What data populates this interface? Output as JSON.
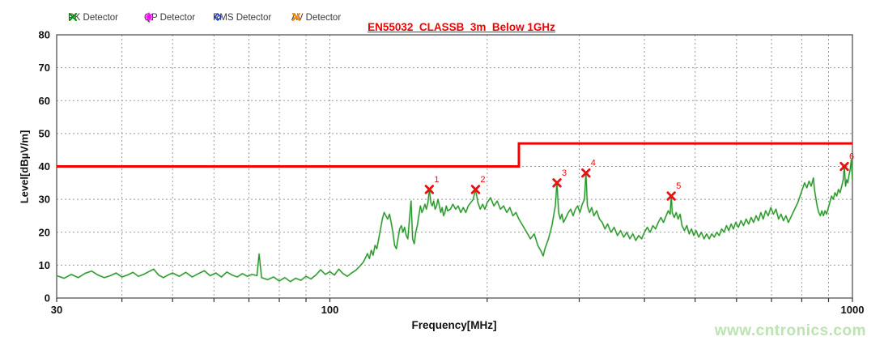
{
  "title": {
    "text": "EN55032_CLASSB_3m_Below 1GHz",
    "color": "#f40000"
  },
  "watermark": {
    "text": "www.cntronics.com",
    "color": "#bce3b2"
  },
  "legend": {
    "items": [
      {
        "label": "PK Detector",
        "marker": "x",
        "color": "#089408"
      },
      {
        "label": "QP Detector",
        "marker": "star",
        "color": "#ff00ff"
      },
      {
        "label": "RMS Detector",
        "marker": "diamond",
        "color": "#1133cc"
      },
      {
        "label": "AV Detector",
        "marker": "x",
        "color": "#ff8c00"
      }
    ]
  },
  "chart_data": {
    "type": "line",
    "title": "EN55032_CLASSB_3m_Below 1GHz",
    "xlabel": "Frequency[MHz]",
    "ylabel": "Level[dBµV/m]",
    "x_scale": "log",
    "xlim": [
      30,
      1000
    ],
    "ylim": [
      0,
      80
    ],
    "x_tick_labels": [
      30,
      100,
      1000
    ],
    "x_gridlines": [
      40,
      50,
      60,
      70,
      80,
      90,
      100,
      200,
      300,
      400,
      500,
      600,
      700,
      800,
      900
    ],
    "y_ticks": [
      0,
      10,
      20,
      30,
      40,
      50,
      60,
      70,
      80
    ],
    "grid": "dashed",
    "colors": {
      "trace": "#259325",
      "trace_glow": "#8fcd8f",
      "limit": "#f40000",
      "marker": "#e81010",
      "gridline": "#999999",
      "frame": "#555555",
      "tick_text": "#111111"
    },
    "series": [
      {
        "name": "PK Detector",
        "color": "#259325",
        "points": [
          [
            30,
            6.8
          ],
          [
            31,
            6.0
          ],
          [
            32,
            7.2
          ],
          [
            33,
            6.2
          ],
          [
            34,
            7.5
          ],
          [
            35,
            8.2
          ],
          [
            36,
            7.0
          ],
          [
            37,
            6.2
          ],
          [
            38,
            6.8
          ],
          [
            39,
            7.6
          ],
          [
            40,
            6.4
          ],
          [
            41,
            7.0
          ],
          [
            42,
            7.8
          ],
          [
            43,
            6.6
          ],
          [
            44,
            7.2
          ],
          [
            45,
            8.0
          ],
          [
            46,
            8.8
          ],
          [
            47,
            7.0
          ],
          [
            48,
            6.2
          ],
          [
            49,
            7.0
          ],
          [
            50,
            7.6
          ],
          [
            51.5,
            6.6
          ],
          [
            53,
            7.8
          ],
          [
            54.5,
            6.4
          ],
          [
            56,
            7.4
          ],
          [
            57.5,
            8.3
          ],
          [
            59,
            6.8
          ],
          [
            60.5,
            7.6
          ],
          [
            62,
            6.4
          ],
          [
            63.5,
            7.9
          ],
          [
            65,
            7.0
          ],
          [
            66.5,
            6.4
          ],
          [
            68,
            7.4
          ],
          [
            69.5,
            6.6
          ],
          [
            71,
            7.2
          ],
          [
            72.5,
            6.8
          ],
          [
            73.2,
            13.4
          ],
          [
            74,
            6.2
          ],
          [
            76,
            5.6
          ],
          [
            78,
            6.4
          ],
          [
            80,
            5.2
          ],
          [
            82,
            6.2
          ],
          [
            84,
            5.0
          ],
          [
            86,
            6.0
          ],
          [
            88,
            5.4
          ],
          [
            90,
            6.6
          ],
          [
            92,
            5.8
          ],
          [
            94,
            7.0
          ],
          [
            96,
            8.6
          ],
          [
            98,
            7.2
          ],
          [
            100,
            8.0
          ],
          [
            102,
            7.0
          ],
          [
            104,
            8.8
          ],
          [
            106,
            7.4
          ],
          [
            108,
            6.6
          ],
          [
            110,
            7.6
          ],
          [
            112,
            8.4
          ],
          [
            114,
            9.6
          ],
          [
            116,
            11.0
          ],
          [
            118,
            13.5
          ],
          [
            119,
            12.0
          ],
          [
            120,
            14.5
          ],
          [
            121,
            13.0
          ],
          [
            122,
            16.0
          ],
          [
            123,
            15.0
          ],
          [
            124,
            18.0
          ],
          [
            125,
            21.0
          ],
          [
            126,
            24.0
          ],
          [
            127,
            26.0
          ],
          [
            128,
            25.0
          ],
          [
            129,
            24.0
          ],
          [
            130,
            25.5
          ],
          [
            131,
            23.0
          ],
          [
            132,
            20.0
          ],
          [
            133,
            16.0
          ],
          [
            134,
            15.0
          ],
          [
            135,
            18.0
          ],
          [
            136,
            21.0
          ],
          [
            137,
            22.0
          ],
          [
            138,
            20.0
          ],
          [
            139,
            21.5
          ],
          [
            140,
            19.0
          ],
          [
            141,
            18.0
          ],
          [
            142,
            24.0
          ],
          [
            143,
            29.5
          ],
          [
            144,
            18.0
          ],
          [
            145,
            16.5
          ],
          [
            146,
            20.0
          ],
          [
            147,
            22.0
          ],
          [
            148,
            25.0
          ],
          [
            149,
            28.0
          ],
          [
            150,
            26.0
          ],
          [
            151,
            27.0
          ],
          [
            152,
            28.5
          ],
          [
            153,
            27.0
          ],
          [
            154,
            29.0
          ],
          [
            155,
            33.0
          ],
          [
            156,
            29.0
          ],
          [
            157,
            28.0
          ],
          [
            158,
            29.5
          ],
          [
            159,
            27.0
          ],
          [
            160,
            28.0
          ],
          [
            161,
            30.0
          ],
          [
            162,
            28.0
          ],
          [
            163,
            26.0
          ],
          [
            164,
            27.5
          ],
          [
            165,
            25.0
          ],
          [
            166,
            26.0
          ],
          [
            167,
            28.0
          ],
          [
            168,
            26.5
          ],
          [
            170,
            27.0
          ],
          [
            172,
            28.5
          ],
          [
            174,
            27.0
          ],
          [
            176,
            28.0
          ],
          [
            178,
            26.0
          ],
          [
            180,
            27.5
          ],
          [
            182,
            26.0
          ],
          [
            184,
            28.0
          ],
          [
            186,
            29.0
          ],
          [
            188,
            30.0
          ],
          [
            190,
            33.0
          ],
          [
            192,
            29.0
          ],
          [
            194,
            27.0
          ],
          [
            196,
            28.5
          ],
          [
            198,
            27.0
          ],
          [
            200,
            29.0
          ],
          [
            203,
            30.5
          ],
          [
            206,
            28.0
          ],
          [
            209,
            29.5
          ],
          [
            212,
            27.0
          ],
          [
            215,
            28.0
          ],
          [
            218,
            26.0
          ],
          [
            221,
            27.5
          ],
          [
            224,
            25.0
          ],
          [
            227,
            26.0
          ],
          [
            230,
            24.0
          ],
          [
            234,
            22.0
          ],
          [
            238,
            20.0
          ],
          [
            242,
            18.0
          ],
          [
            246,
            19.5
          ],
          [
            250,
            16.0
          ],
          [
            254,
            14.0
          ],
          [
            256,
            12.8
          ],
          [
            258,
            15.0
          ],
          [
            262,
            18.0
          ],
          [
            264,
            20.0
          ],
          [
            266,
            22.0
          ],
          [
            268,
            25.0
          ],
          [
            270,
            28.0
          ],
          [
            272,
            35.0
          ],
          [
            274,
            26.0
          ],
          [
            276,
            24.0
          ],
          [
            278,
            25.5
          ],
          [
            280,
            23.0
          ],
          [
            283,
            24.5
          ],
          [
            286,
            26.0
          ],
          [
            289,
            27.0
          ],
          [
            292,
            25.0
          ],
          [
            295,
            27.0
          ],
          [
            298,
            28.0
          ],
          [
            301,
            26.0
          ],
          [
            304,
            28.5
          ],
          [
            307,
            30.0
          ],
          [
            309,
            38.0
          ],
          [
            311,
            28.0
          ],
          [
            314,
            26.0
          ],
          [
            317,
            27.5
          ],
          [
            320,
            25.0
          ],
          [
            324,
            26.5
          ],
          [
            328,
            24.0
          ],
          [
            332,
            23.0
          ],
          [
            336,
            21.0
          ],
          [
            340,
            22.5
          ],
          [
            345,
            20.0
          ],
          [
            350,
            21.5
          ],
          [
            355,
            19.0
          ],
          [
            360,
            20.5
          ],
          [
            365,
            18.5
          ],
          [
            370,
            20.0
          ],
          [
            375,
            18.0
          ],
          [
            380,
            19.5
          ],
          [
            385,
            17.5
          ],
          [
            390,
            19.0
          ],
          [
            395,
            18.0
          ],
          [
            400,
            20.0
          ],
          [
            405,
            21.5
          ],
          [
            410,
            20.0
          ],
          [
            415,
            22.0
          ],
          [
            420,
            21.0
          ],
          [
            425,
            23.0
          ],
          [
            430,
            24.5
          ],
          [
            435,
            23.0
          ],
          [
            440,
            25.0
          ],
          [
            444,
            26.5
          ],
          [
            448,
            25.5
          ],
          [
            450,
            31.0
          ],
          [
            452,
            26.0
          ],
          [
            456,
            24.5
          ],
          [
            460,
            26.0
          ],
          [
            464,
            24.0
          ],
          [
            468,
            25.5
          ],
          [
            472,
            22.0
          ],
          [
            477,
            20.5
          ],
          [
            482,
            22.0
          ],
          [
            487,
            19.5
          ],
          [
            492,
            21.0
          ],
          [
            497,
            19.0
          ],
          [
            502,
            20.5
          ],
          [
            508,
            18.5
          ],
          [
            514,
            20.0
          ],
          [
            520,
            18.0
          ],
          [
            526,
            19.5
          ],
          [
            532,
            18.0
          ],
          [
            538,
            19.5
          ],
          [
            544,
            18.5
          ],
          [
            550,
            20.0
          ],
          [
            556,
            19.0
          ],
          [
            562,
            21.0
          ],
          [
            568,
            20.0
          ],
          [
            574,
            22.0
          ],
          [
            580,
            20.5
          ],
          [
            586,
            22.5
          ],
          [
            592,
            21.0
          ],
          [
            598,
            23.0
          ],
          [
            605,
            21.5
          ],
          [
            612,
            23.5
          ],
          [
            619,
            22.0
          ],
          [
            626,
            24.0
          ],
          [
            633,
            22.5
          ],
          [
            640,
            24.5
          ],
          [
            647,
            23.0
          ],
          [
            654,
            25.0
          ],
          [
            661,
            23.5
          ],
          [
            668,
            26.0
          ],
          [
            675,
            24.0
          ],
          [
            682,
            26.5
          ],
          [
            690,
            25.0
          ],
          [
            698,
            27.5
          ],
          [
            706,
            25.5
          ],
          [
            714,
            27.0
          ],
          [
            722,
            24.0
          ],
          [
            730,
            25.5
          ],
          [
            738,
            23.5
          ],
          [
            746,
            25.0
          ],
          [
            754,
            23.0
          ],
          [
            762,
            24.5
          ],
          [
            770,
            26.0
          ],
          [
            778,
            27.5
          ],
          [
            786,
            29.0
          ],
          [
            794,
            31.0
          ],
          [
            802,
            33.0
          ],
          [
            810,
            35.0
          ],
          [
            818,
            33.5
          ],
          [
            826,
            35.5
          ],
          [
            834,
            34.0
          ],
          [
            842,
            36.5
          ],
          [
            846,
            33.0
          ],
          [
            850,
            31.0
          ],
          [
            856,
            28.0
          ],
          [
            862,
            26.0
          ],
          [
            868,
            25.0
          ],
          [
            874,
            26.5
          ],
          [
            880,
            25.0
          ],
          [
            886,
            26.5
          ],
          [
            892,
            25.5
          ],
          [
            898,
            27.0
          ],
          [
            905,
            29.0
          ],
          [
            912,
            31.0
          ],
          [
            919,
            30.0
          ],
          [
            926,
            32.0
          ],
          [
            933,
            31.0
          ],
          [
            940,
            33.0
          ],
          [
            947,
            32.0
          ],
          [
            954,
            34.0
          ],
          [
            960,
            36.0
          ],
          [
            965,
            40.0
          ],
          [
            970,
            34.0
          ],
          [
            975,
            36.0
          ],
          [
            980,
            35.0
          ],
          [
            985,
            37.5
          ],
          [
            990,
            39.0
          ],
          [
            995,
            42.0
          ],
          [
            1000,
            36.0
          ]
        ]
      },
      {
        "name": "EN55032 Class B limit",
        "color": "#f40000",
        "points": [
          [
            30,
            40
          ],
          [
            230,
            40
          ],
          [
            230,
            47
          ],
          [
            1000,
            47
          ]
        ]
      }
    ],
    "peak_markers": [
      {
        "label": "1",
        "freq": 155,
        "level": 33
      },
      {
        "label": "2",
        "freq": 190,
        "level": 33
      },
      {
        "label": "3",
        "freq": 272,
        "level": 35
      },
      {
        "label": "4",
        "freq": 309,
        "level": 38
      },
      {
        "label": "5",
        "freq": 450,
        "level": 31
      },
      {
        "label": "6",
        "freq": 965,
        "level": 40
      }
    ]
  }
}
